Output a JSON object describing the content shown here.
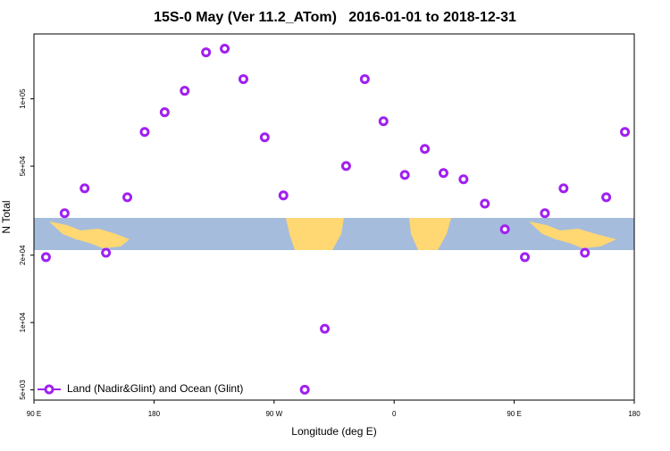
{
  "chart_data": {
    "type": "scatter",
    "title": "15S-0 May (Ver 11.2_ATom)   2016-01-01 to 2018-12-31",
    "x_label": "Longitude (deg E)",
    "y_label": "N Total",
    "log_y": true,
    "xlim": [
      90,
      540
    ],
    "xticks": [
      {
        "value": 90,
        "label": "90 E"
      },
      180,
      {
        "value": 270,
        "label": "90 W"
      },
      {
        "value": 360,
        "label": "0"
      },
      {
        "value": 450,
        "label": "90 E"
      },
      {
        "value": 540,
        "label": "180"
      }
    ],
    "ylim": [
      4500,
      195000
    ],
    "yticks": [
      {
        "value": 5000,
        "label": "5e+03"
      },
      {
        "value": 10000,
        "label": "1e+04"
      },
      {
        "value": 20000,
        "label": "2e+04"
      },
      {
        "value": 50000,
        "label": "5e+04"
      },
      {
        "value": 100000,
        "label": "1e+05"
      }
    ],
    "legend": "bottom-left",
    "series": [
      {
        "name": "Land (Nadir&Glint) and Ocean (Glint)",
        "color": "#a020f0",
        "x": [
          99,
          113,
          128,
          144,
          160,
          173,
          188,
          203,
          219,
          233,
          247,
          263,
          277,
          293,
          308,
          324,
          338,
          352,
          368,
          383,
          397,
          412,
          428,
          443,
          458,
          473,
          487,
          503,
          519,
          533
        ],
        "values": [
          19600,
          30800,
          39800,
          20500,
          36300,
          71100,
          87100,
          108600,
          161400,
          167500,
          122500,
          67300,
          37000,
          5010,
          9380,
          50100,
          122500,
          79400,
          45700,
          59700,
          46600,
          43700,
          34000,
          26100,
          19600,
          30800,
          39800,
          20500,
          36300,
          71100
        ]
      }
    ]
  }
}
